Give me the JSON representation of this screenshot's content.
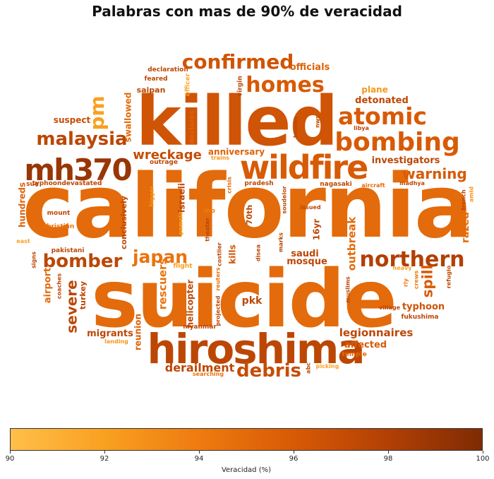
{
  "chart_data": {
    "type": "wordcloud",
    "title": "Palabras con mas de 90% de veracidad",
    "colorbar": {
      "label": "Veracidad (%)",
      "range": [
        90,
        100
      ],
      "ticks": [
        90,
        92,
        94,
        96,
        98,
        100
      ],
      "colors": [
        "#ffbf4a",
        "#f9a020",
        "#ee7b10",
        "#d85a05",
        "#b24005",
        "#7f2b04"
      ]
    },
    "words": [
      {
        "text": "california",
        "value": 95.0
      },
      {
        "text": "suicide",
        "value": 95.0
      },
      {
        "text": "killed",
        "value": 96.5
      },
      {
        "text": "hiroshima",
        "value": 97.5
      },
      {
        "text": "wildfire",
        "value": 96.0
      },
      {
        "text": "mh370",
        "value": 99.0
      },
      {
        "text": "bombing",
        "value": 96.0
      },
      {
        "text": "atomic",
        "value": 96.0
      },
      {
        "text": "northern",
        "value": 98.0
      },
      {
        "text": "homes",
        "value": 96.0
      },
      {
        "text": "confirmed",
        "value": 96.5
      },
      {
        "text": "malaysia",
        "value": 97.5
      },
      {
        "text": "debris",
        "value": 97.0
      },
      {
        "text": "bomber",
        "value": 97.5
      },
      {
        "text": "japan",
        "value": 94.5
      },
      {
        "text": "pm",
        "value": 92.0
      },
      {
        "text": "wreckage",
        "value": 97.0
      },
      {
        "text": "warning",
        "value": 96.0
      },
      {
        "text": "derailment",
        "value": 97.5
      },
      {
        "text": "severe",
        "value": 97.5
      },
      {
        "text": "spill",
        "value": 96.0
      },
      {
        "text": "legionnaires",
        "value": 97.5
      },
      {
        "text": "outbreak",
        "value": 95.0
      },
      {
        "text": "investigators",
        "value": 97.5
      },
      {
        "text": "detonated",
        "value": 97.5
      },
      {
        "text": "officials",
        "value": 95.5
      },
      {
        "text": "plane",
        "value": 92.5
      },
      {
        "text": "suspect",
        "value": 97.0
      },
      {
        "text": "swallowed",
        "value": 95.0
      },
      {
        "text": "anniversary",
        "value": 95.5
      },
      {
        "text": "rescuers",
        "value": 94.5
      },
      {
        "text": "migrants",
        "value": 97.5
      },
      {
        "text": "reunion",
        "value": 95.5
      },
      {
        "text": "helicopter",
        "value": 97.5
      },
      {
        "text": "pkk",
        "value": 97.5
      },
      {
        "text": "mosque",
        "value": 97.5
      },
      {
        "text": "saudi",
        "value": 97.5
      },
      {
        "text": "typhoon",
        "value": 96.5
      },
      {
        "text": "affected",
        "value": 96.0
      },
      {
        "text": "razed",
        "value": 95.0
      },
      {
        "text": "airport",
        "value": 95.0
      },
      {
        "text": "turkey",
        "value": 97.5
      },
      {
        "text": "hundreds",
        "value": 95.5
      },
      {
        "text": "kills",
        "value": 96.5
      },
      {
        "text": "israeli",
        "value": 97.5
      },
      {
        "text": "16yr",
        "value": 97.5
      },
      {
        "text": "70th",
        "value": 97.5
      },
      {
        "text": "conclusively",
        "value": 97.5
      },
      {
        "text": "saipan",
        "value": 97.5
      },
      {
        "text": "declares",
        "value": 95.5
      },
      {
        "text": "declaration",
        "value": 97.5
      },
      {
        "text": "feared",
        "value": 97.5
      },
      {
        "text": "officer",
        "value": 91.5
      },
      {
        "text": "virgin",
        "value": 97.5
      },
      {
        "text": "bombs",
        "value": 97.5
      },
      {
        "text": "nws",
        "value": 97.5
      },
      {
        "text": "libya",
        "value": 97.5
      },
      {
        "text": "outrage",
        "value": 97.5
      },
      {
        "text": "trains",
        "value": 92.5
      },
      {
        "text": "typhoondevastated",
        "value": 97.5
      },
      {
        "text": "sue",
        "value": 97.5
      },
      {
        "text": "mount",
        "value": 97.5
      },
      {
        "text": "christian",
        "value": 94.5
      },
      {
        "text": "east",
        "value": 92.0
      },
      {
        "text": "pakistani",
        "value": 97.5
      },
      {
        "text": "signs",
        "value": 97.5
      },
      {
        "text": "coaches",
        "value": 97.5
      },
      {
        "text": "bigger",
        "value": 92.5
      },
      {
        "text": "pamela",
        "value": 92.0
      },
      {
        "text": "mp",
        "value": 94.0
      },
      {
        "text": "theater",
        "value": 97.5
      },
      {
        "text": "crisis",
        "value": 95.0
      },
      {
        "text": "pradesh",
        "value": 97.5
      },
      {
        "text": "soudelor",
        "value": 97.5
      },
      {
        "text": "issued",
        "value": 97.5
      },
      {
        "text": "nagasaki",
        "value": 97.5
      },
      {
        "text": "aircraft",
        "value": 95.0
      },
      {
        "text": "madhya",
        "value": 97.5
      },
      {
        "text": "trench",
        "value": 97.5
      },
      {
        "text": "amid",
        "value": 92.5
      },
      {
        "text": "flight",
        "value": 92.0
      },
      {
        "text": "costlier",
        "value": 97.5
      },
      {
        "text": "reuters",
        "value": 94.5
      },
      {
        "text": "projected",
        "value": 97.5
      },
      {
        "text": "myanmar",
        "value": 97.5
      },
      {
        "text": "disea",
        "value": 97.5
      },
      {
        "text": "marks",
        "value": 97.5
      },
      {
        "text": "heavy",
        "value": 92.0
      },
      {
        "text": "crews",
        "value": 94.0
      },
      {
        "text": "refugio",
        "value": 97.5
      },
      {
        "text": "rly",
        "value": 94.0
      },
      {
        "text": "muslims",
        "value": 97.5
      },
      {
        "text": "village",
        "value": 97.5
      },
      {
        "text": "fukushima",
        "value": 97.5
      },
      {
        "text": "temple",
        "value": 95.0
      },
      {
        "text": "picking",
        "value": 92.0
      },
      {
        "text": "abc",
        "value": 97.5
      },
      {
        "text": "landing",
        "value": 92.5
      },
      {
        "text": "searching",
        "value": 94.5
      }
    ]
  }
}
